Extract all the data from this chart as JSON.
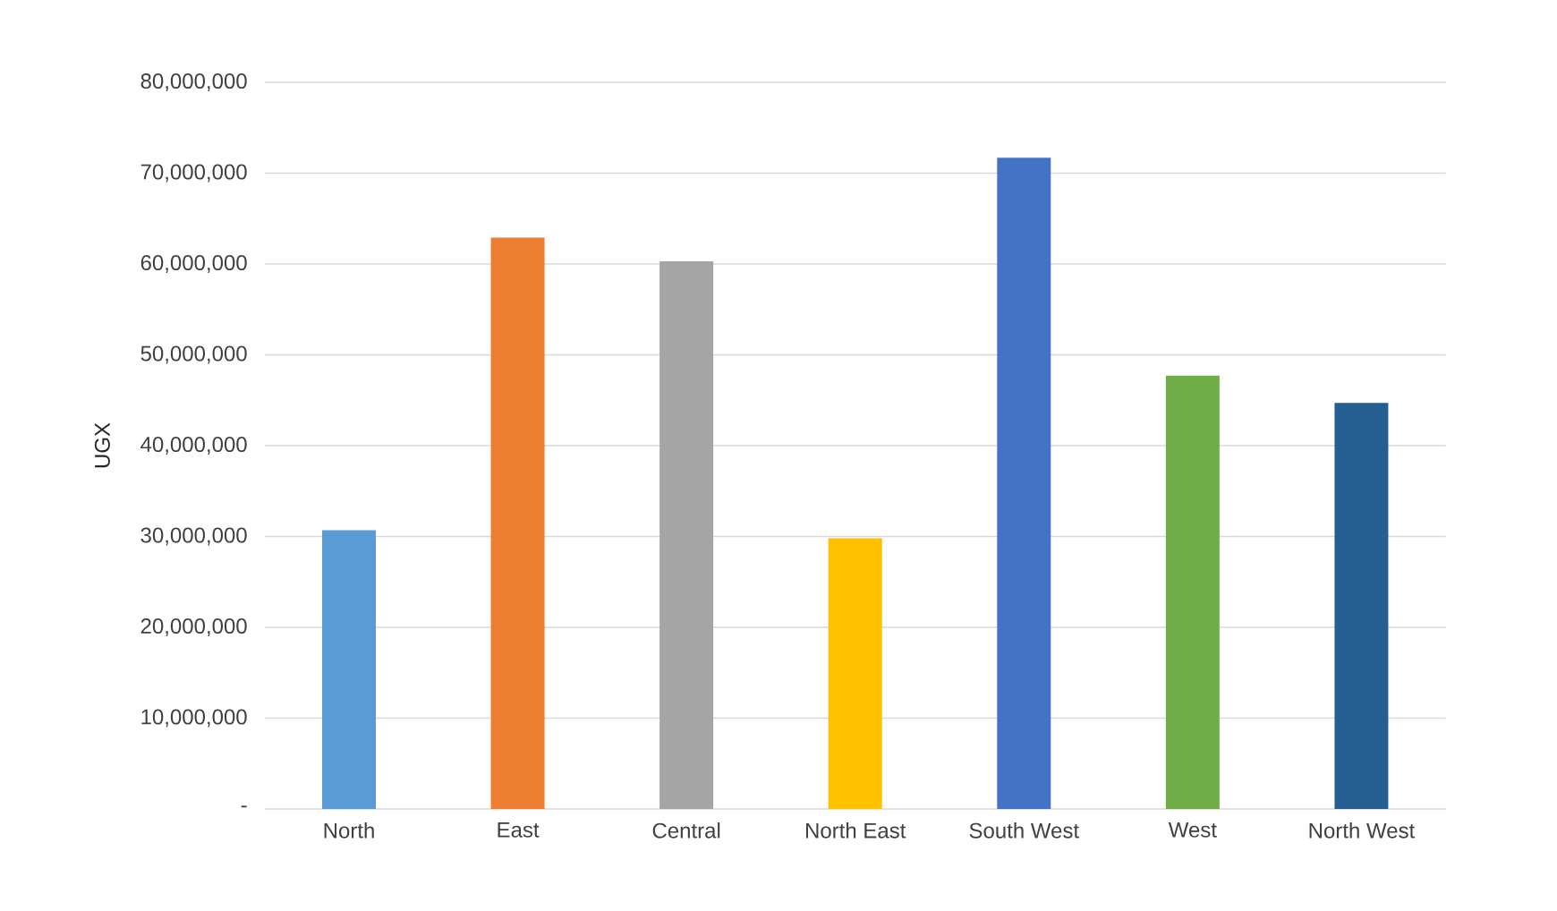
{
  "chart_data": {
    "type": "bar",
    "ylabel": "UGX",
    "categories": [
      "North",
      "East",
      "Central",
      "North East",
      "South West",
      "West",
      "North West"
    ],
    "values": [
      30700000,
      62900000,
      60300000,
      29800000,
      71700000,
      47700000,
      44700000
    ],
    "colors": [
      "#5b9bd5",
      "#ed7d31",
      "#a5a5a5",
      "#ffc000",
      "#4472c4",
      "#70ad47",
      "#255e91"
    ],
    "ylim": [
      0,
      80000000
    ],
    "yticks": [
      {
        "value": 0,
        "label": "-"
      },
      {
        "value": 10000000,
        "label": "10,000,000"
      },
      {
        "value": 20000000,
        "label": "20,000,000"
      },
      {
        "value": 30000000,
        "label": "30,000,000"
      },
      {
        "value": 40000000,
        "label": "40,000,000"
      },
      {
        "value": 50000000,
        "label": "50,000,000"
      },
      {
        "value": 60000000,
        "label": "60,000,000"
      },
      {
        "value": 70000000,
        "label": "70,000,000"
      },
      {
        "value": 80000000,
        "label": "80,000,000"
      }
    ],
    "grid": "y"
  }
}
